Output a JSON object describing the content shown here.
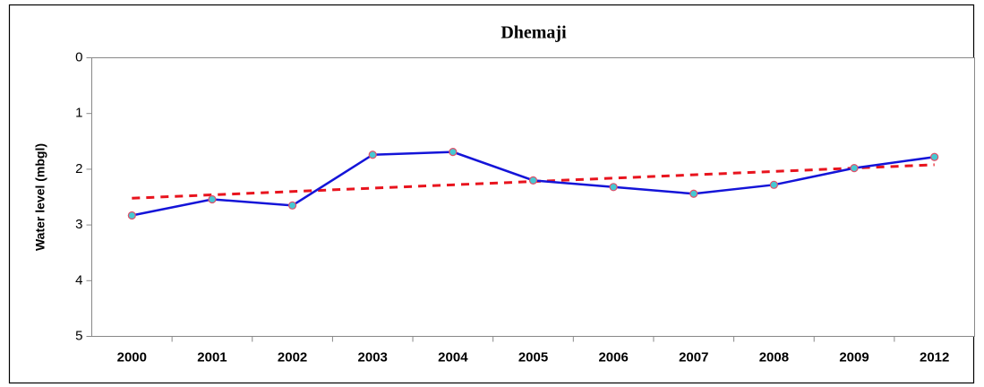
{
  "chart_data": {
    "type": "line",
    "title": "Dhemaji",
    "y_label": "Water level (mbgl)",
    "categories": [
      "2000",
      "2001",
      "2002",
      "2003",
      "2004",
      "2005",
      "2006",
      "2007",
      "2008",
      "2009",
      "2012"
    ],
    "series": [
      {
        "color": "#1414d8",
        "marker_fill": "#46c8d2",
        "marker_edge": "#e0506a",
        "line_style": "solid",
        "values": [
          2.83,
          2.54,
          2.65,
          1.74,
          1.69,
          2.2,
          2.32,
          2.44,
          2.28,
          1.98,
          1.78
        ]
      },
      {
        "color": "#e8141e",
        "line_style": "dashed",
        "values": [
          2.52,
          2.46,
          2.4,
          2.34,
          2.28,
          2.22,
          2.16,
          2.1,
          2.04,
          1.98,
          1.92
        ]
      }
    ],
    "ylim": [
      0,
      5
    ],
    "y_inverted": true,
    "yticks": [
      0,
      1,
      2,
      3,
      4,
      5
    ],
    "grid": false
  }
}
